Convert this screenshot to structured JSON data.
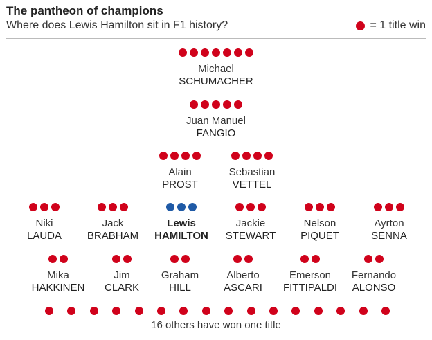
{
  "header": {
    "title": "The pantheon of champions",
    "subtitle": "Where does Lewis Hamilton sit in F1 history?",
    "legend_label": "= 1 title win"
  },
  "colors": {
    "title_dot": "#d0021b",
    "hamilton_dot": "#1f5aa6"
  },
  "chart_data": {
    "type": "pictogram",
    "unit": "1 title win",
    "champions": [
      {
        "first": "Michael",
        "last": "SCHUMACHER",
        "titles": 7,
        "highlight": false
      },
      {
        "first": "Juan Manuel",
        "last": "FANGIO",
        "titles": 5,
        "highlight": false
      },
      {
        "first": "Alain",
        "last": "PROST",
        "titles": 4,
        "highlight": false
      },
      {
        "first": "Sebastian",
        "last": "VETTEL",
        "titles": 4,
        "highlight": false
      },
      {
        "first": "Niki",
        "last": "LAUDA",
        "titles": 3,
        "highlight": false
      },
      {
        "first": "Jack",
        "last": "BRABHAM",
        "titles": 3,
        "highlight": false
      },
      {
        "first": "Lewis",
        "last": "HAMILTON",
        "titles": 3,
        "highlight": true
      },
      {
        "first": "Jackie",
        "last": "STEWART",
        "titles": 3,
        "highlight": false
      },
      {
        "first": "Nelson",
        "last": "PIQUET",
        "titles": 3,
        "highlight": false
      },
      {
        "first": "Ayrton",
        "last": "SENNA",
        "titles": 3,
        "highlight": false
      },
      {
        "first": "Mika",
        "last": "HAKKINEN",
        "titles": 2,
        "highlight": false
      },
      {
        "first": "Jim",
        "last": "CLARK",
        "titles": 2,
        "highlight": false
      },
      {
        "first": "Graham",
        "last": "HILL",
        "titles": 2,
        "highlight": false
      },
      {
        "first": "Alberto",
        "last": "ASCARI",
        "titles": 2,
        "highlight": false
      },
      {
        "first": "Emerson",
        "last": "FITTIPALDI",
        "titles": 2,
        "highlight": false
      },
      {
        "first": "Fernando",
        "last": "ALONSO",
        "titles": 2,
        "highlight": false
      }
    ],
    "others": {
      "count": 16,
      "titles_each": 1,
      "label": "16 others have won one title"
    }
  }
}
